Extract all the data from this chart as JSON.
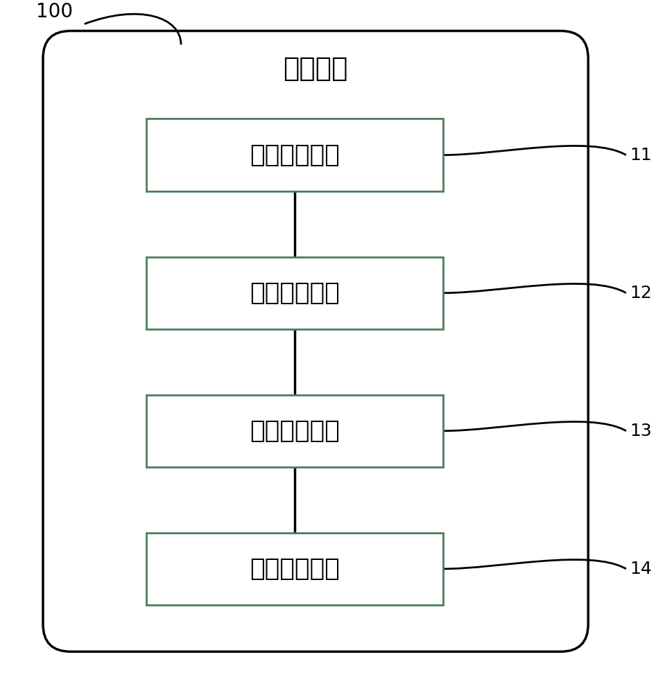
{
  "title": "控制裝置",
  "title_label": "100",
  "boxes": [
    {
      "label": "第一獲取模塊",
      "id": "11"
    },
    {
      "label": "第二獲取模塊",
      "id": "12"
    },
    {
      "label": "第一控制模塊",
      "id": "13"
    },
    {
      "label": "第二控制模塊",
      "id": "14"
    }
  ],
  "bg_color": "#ffffff",
  "box_border_color": "#4a7c59",
  "outer_border_color": "#000000",
  "text_color": "#000000",
  "line_color": "#000000",
  "font_size_title": 28,
  "font_size_box": 26,
  "font_size_label": 18
}
